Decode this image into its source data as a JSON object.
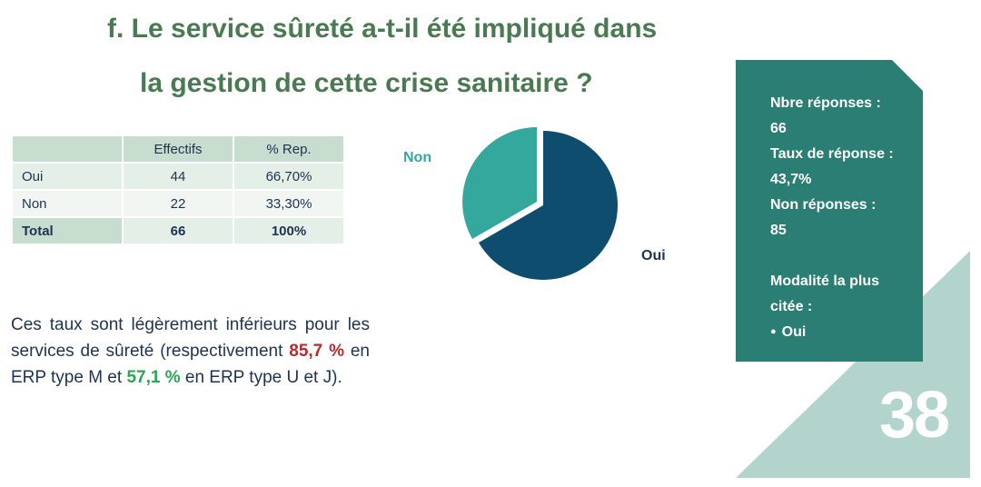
{
  "title": {
    "line1": "f.  Le service sûreté a-t-il été impliqué dans",
    "line2": "la gestion de cette crise sanitaire ?"
  },
  "table": {
    "headers": [
      "",
      "Effectifs",
      "% Rep."
    ],
    "rows": [
      {
        "label": "Oui",
        "effectifs": "44",
        "pct": "66,70%"
      },
      {
        "label": "Non",
        "effectifs": "22",
        "pct": "33,30%"
      }
    ],
    "total": {
      "label": "Total",
      "effectifs": "66",
      "pct": "100%"
    }
  },
  "note": {
    "part1": "Ces taux sont légèrement inférieurs pour les services de sûreté (respectivement ",
    "value_m": "85,7 %",
    "part2": " en ERP type M et ",
    "value_uj": "57,1 %",
    "part3": " en ERP type U et J).",
    "color_m": "#c0272d",
    "color_uj": "#2aa552"
  },
  "chart_data": {
    "type": "pie",
    "categories": [
      "Oui",
      "Non"
    ],
    "values": [
      44,
      22
    ],
    "colors": [
      "#0f4d6e",
      "#35a89e"
    ],
    "exploded": "Non",
    "labels": [
      "Oui",
      "Non"
    ],
    "label_colors": [
      "#1e3350",
      "#35a89e"
    ]
  },
  "panel": {
    "nb_label": "Nbre réponses :",
    "nb_value": "66",
    "taux_label": "Taux de réponse :",
    "taux_value": "43,7%",
    "non_label": "Non réponses :",
    "non_value": "85",
    "modal_label_1": "Modalité la plus",
    "modal_label_2": "citée :",
    "modal_value": "Oui",
    "color": "#2a7e73"
  },
  "page_number": "38",
  "decoration_color": "#b3d3cd"
}
